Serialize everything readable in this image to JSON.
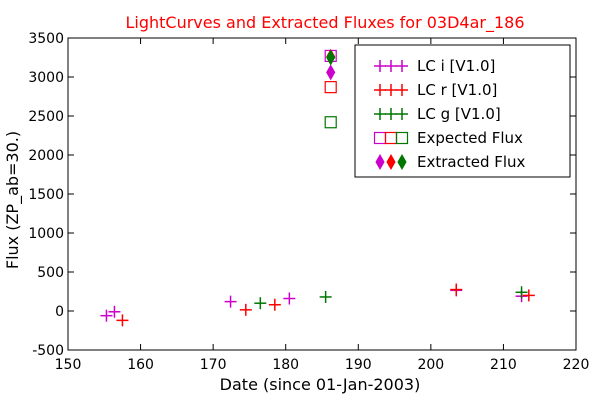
{
  "chart_data": {
    "type": "scatter",
    "title": "LightCurves and Extracted Fluxes for 03D4ar_186",
    "xlabel": "Date (since 01-Jan-2003)",
    "ylabel": "Flux (ZP_ab=30.)",
    "xlim": [
      150,
      220
    ],
    "ylim": [
      -500,
      3500
    ],
    "xticks": [
      "150",
      "160",
      "170",
      "180",
      "190",
      "200",
      "210",
      "220"
    ],
    "yticks": [
      "-500",
      "0",
      "500",
      "1000",
      "1500",
      "2000",
      "2500",
      "3000",
      "3500"
    ],
    "grid": false,
    "legend_position": "top-right",
    "series": [
      {
        "name": "LC i [V1.0]",
        "marker": "plus",
        "color": "#cc00cc",
        "points": [
          [
            155.3,
            -60
          ],
          [
            156.4,
            -10
          ],
          [
            172.4,
            120
          ],
          [
            180.5,
            160
          ],
          [
            203.5,
            265
          ],
          [
            212.5,
            190
          ]
        ]
      },
      {
        "name": "LC r [V1.0]",
        "marker": "plus",
        "color": "#ff0000",
        "points": [
          [
            157.5,
            -120
          ],
          [
            174.5,
            15
          ],
          [
            178.5,
            80
          ],
          [
            203.5,
            275
          ],
          [
            213.5,
            200
          ]
        ]
      },
      {
        "name": "LC g [V1.0]",
        "marker": "plus",
        "color": "#007700",
        "points": [
          [
            176.5,
            100
          ],
          [
            185.5,
            180
          ],
          [
            212.5,
            240
          ]
        ]
      },
      {
        "name": "Expected Flux",
        "marker": "square",
        "colors": [
          "#cc00cc",
          "#ff0000",
          "#007700"
        ],
        "points": [
          [
            186.2,
            3270,
            "#cc00cc"
          ],
          [
            186.2,
            2870,
            "#ff0000"
          ],
          [
            186.2,
            2420,
            "#007700"
          ]
        ]
      },
      {
        "name": "Extracted Flux",
        "marker": "diamond",
        "colors": [
          "#cc00cc",
          "#ff0000",
          "#007700"
        ],
        "points": [
          [
            186.2,
            3060,
            "#cc00cc"
          ],
          [
            186.2,
            3260,
            "#ff0000"
          ],
          [
            186.2,
            3250,
            "#007700"
          ]
        ]
      }
    ],
    "colors": {
      "title": "#ff0000",
      "axes": "#000000",
      "background": "#ffffff"
    }
  }
}
